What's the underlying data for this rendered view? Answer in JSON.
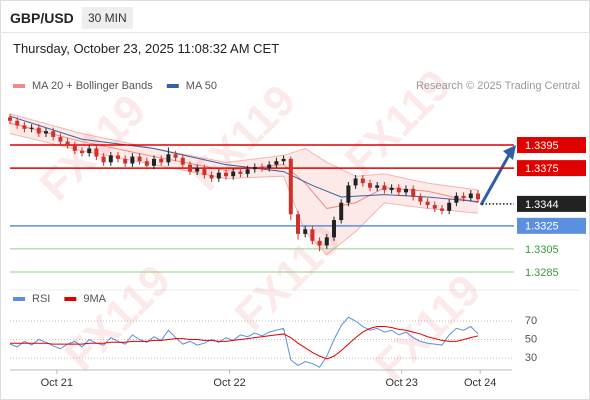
{
  "header": {
    "symbol": "GBP/USD",
    "timeframe": "30 MIN",
    "datetime": "Thursday, October 23, 2025 11:08:32 AM CET"
  },
  "watermark": "FX119",
  "chart_data": [
    {
      "type": "candlestick",
      "source": "Research © 2025 Trading Central",
      "up_color": "#222222",
      "down_color": "#d0302a",
      "xlim": [
        0,
        70
      ],
      "xticks": [
        {
          "value": 6.5,
          "label": "Oct 21"
        },
        {
          "value": 30.5,
          "label": "Oct 22"
        },
        {
          "value": 54.4,
          "label": "Oct 23"
        },
        {
          "value": 65.3,
          "label": "Oct 24"
        }
      ],
      "ylim": [
        1.3274,
        1.3425
      ],
      "open": [
        1.3419,
        1.3416,
        1.3412,
        1.3409,
        1.341,
        1.3405,
        1.3407,
        1.3402,
        1.3398,
        1.3395,
        1.339,
        1.3388,
        1.3392,
        1.3385,
        1.338,
        1.3386,
        1.3383,
        1.3379,
        1.3385,
        1.3381,
        1.3377,
        1.3383,
        1.338,
        1.3387,
        1.3384,
        1.3378,
        1.3372,
        1.3375,
        1.3369,
        1.3366,
        1.3371,
        1.3368,
        1.3372,
        1.337,
        1.3374,
        1.3376,
        1.3375,
        1.3378,
        1.3381,
        1.3383,
        1.3335,
        1.3318,
        1.3322,
        1.3312,
        1.3308,
        1.3315,
        1.333,
        1.3345,
        1.336,
        1.3366,
        1.3362,
        1.3358,
        1.336,
        1.3356,
        1.3358,
        1.3354,
        1.3357,
        1.335,
        1.3346,
        1.3343,
        1.334,
        1.3338,
        1.3345,
        1.3351,
        1.3349,
        1.3353
      ],
      "high": [
        1.3422,
        1.3419,
        1.3415,
        1.3413,
        1.3413,
        1.341,
        1.341,
        1.3405,
        1.3401,
        1.3398,
        1.3393,
        1.3395,
        1.3395,
        1.3388,
        1.3389,
        1.3389,
        1.3386,
        1.3388,
        1.3388,
        1.3384,
        1.3386,
        1.3386,
        1.3393,
        1.339,
        1.3387,
        1.3381,
        1.3378,
        1.3378,
        1.3372,
        1.3374,
        1.3374,
        1.3375,
        1.3375,
        1.3377,
        1.3379,
        1.3379,
        1.3381,
        1.3384,
        1.3386,
        1.3385,
        1.3338,
        1.3325,
        1.3325,
        1.3315,
        1.3318,
        1.3333,
        1.3348,
        1.3363,
        1.3369,
        1.3369,
        1.3365,
        1.3363,
        1.3363,
        1.3361,
        1.3361,
        1.336,
        1.336,
        1.3353,
        1.3349,
        1.3346,
        1.3343,
        1.3348,
        1.3354,
        1.3354,
        1.3356,
        1.3356
      ],
      "low": [
        1.3413,
        1.3409,
        1.3406,
        1.3406,
        1.3402,
        1.3402,
        1.3399,
        1.3395,
        1.3392,
        1.3387,
        1.3385,
        1.3385,
        1.3382,
        1.3377,
        1.3377,
        1.338,
        1.3376,
        1.3376,
        1.3378,
        1.3374,
        1.3374,
        1.3377,
        1.3377,
        1.3381,
        1.3375,
        1.3369,
        1.3369,
        1.3366,
        1.3363,
        1.3363,
        1.3365,
        1.3365,
        1.3367,
        1.3367,
        1.3371,
        1.3372,
        1.3372,
        1.3375,
        1.3378,
        1.333,
        1.3313,
        1.3315,
        1.3309,
        1.3303,
        1.3305,
        1.3312,
        1.3327,
        1.3342,
        1.3357,
        1.3359,
        1.3355,
        1.3355,
        1.3353,
        1.3353,
        1.3351,
        1.3351,
        1.3347,
        1.3343,
        1.334,
        1.3337,
        1.3335,
        1.3335,
        1.3342,
        1.3346,
        1.3346,
        1.3345
      ],
      "close": [
        1.3416,
        1.3412,
        1.3409,
        1.341,
        1.3405,
        1.3407,
        1.3402,
        1.3398,
        1.3395,
        1.339,
        1.3388,
        1.3392,
        1.3385,
        1.338,
        1.3386,
        1.3383,
        1.3379,
        1.3385,
        1.3381,
        1.3377,
        1.3383,
        1.338,
        1.3387,
        1.3384,
        1.3378,
        1.3372,
        1.3375,
        1.3369,
        1.3366,
        1.3371,
        1.3368,
        1.3372,
        1.337,
        1.3374,
        1.3376,
        1.3375,
        1.3378,
        1.3381,
        1.3383,
        1.3335,
        1.3318,
        1.3322,
        1.3312,
        1.3308,
        1.3315,
        1.333,
        1.3345,
        1.336,
        1.3366,
        1.3362,
        1.3358,
        1.336,
        1.3356,
        1.3358,
        1.3354,
        1.3357,
        1.335,
        1.3346,
        1.3343,
        1.334,
        1.3338,
        1.3345,
        1.3351,
        1.3349,
        1.3353,
        1.3348
      ],
      "series": [
        {
          "name": "MA 20 + Bollinger Bands",
          "color": "#f08a84",
          "x": [
            0,
            10,
            20,
            30,
            38,
            41,
            44,
            48,
            52,
            58,
            65
          ],
          "values": [
            1.3414,
            1.3398,
            1.3385,
            1.3373,
            1.3378,
            1.3362,
            1.334,
            1.3345,
            1.3358,
            1.3355,
            1.3345
          ],
          "upper": [
            1.3422,
            1.3405,
            1.3392,
            1.338,
            1.3386,
            1.3392,
            1.338,
            1.3368,
            1.337,
            1.3362,
            1.3356
          ],
          "lower": [
            1.3405,
            1.339,
            1.3378,
            1.3366,
            1.3368,
            1.332,
            1.33,
            1.332,
            1.3345,
            1.334,
            1.3336
          ]
        },
        {
          "name": "MA 50",
          "color": "#3b5f9e",
          "x": [
            0,
            10,
            20,
            30,
            38,
            42,
            46,
            52,
            58,
            65
          ],
          "values": [
            1.342,
            1.34,
            1.3392,
            1.3378,
            1.3372,
            1.336,
            1.335,
            1.3352,
            1.335,
            1.3346
          ]
        }
      ],
      "levels": [
        {
          "value": 1.3395,
          "color": "#e00000",
          "boxed": true,
          "dotted": false
        },
        {
          "value": 1.3375,
          "color": "#e00000",
          "boxed": true,
          "dotted": false
        },
        {
          "value": 1.3344,
          "color": "#222222",
          "boxed": true,
          "dotted": true
        },
        {
          "value": 1.3325,
          "color": "#5b8fe0",
          "boxed": true,
          "dotted": false
        },
        {
          "value": 1.3305,
          "color": "#8fd08a",
          "boxed": false,
          "dotted": false
        },
        {
          "value": 1.3285,
          "color": "#8fd08a",
          "boxed": false,
          "dotted": false
        }
      ]
    },
    {
      "type": "line",
      "ylim": [
        20,
        92
      ],
      "yticks": [
        30,
        50,
        70
      ],
      "grid": true,
      "series": [
        {
          "name": "RSI",
          "color": "#5b8fe0",
          "values": [
            45,
            42,
            48,
            44,
            50,
            47,
            43,
            40,
            45,
            48,
            42,
            50,
            46,
            44,
            52,
            48,
            45,
            55,
            50,
            47,
            53,
            49,
            60,
            52,
            45,
            48,
            44,
            46,
            50,
            47,
            52,
            49,
            55,
            53,
            57,
            54,
            58,
            60,
            62,
            28,
            22,
            26,
            24,
            20,
            32,
            50,
            65,
            74,
            70,
            64,
            60,
            62,
            58,
            60,
            55,
            58,
            52,
            48,
            46,
            45,
            44,
            55,
            62,
            60,
            64,
            56
          ]
        },
        {
          "name": "9MA",
          "color": "#e00000",
          "values": [
            46,
            46,
            46,
            46,
            46,
            46,
            45,
            45,
            45,
            45,
            45,
            46,
            46,
            46,
            47,
            47,
            47,
            48,
            48,
            48,
            49,
            49,
            50,
            51,
            51,
            50,
            50,
            49,
            49,
            48,
            48,
            49,
            50,
            51,
            52,
            53,
            54,
            55,
            56,
            52,
            46,
            41,
            36,
            32,
            29,
            32,
            38,
            45,
            52,
            58,
            62,
            64,
            64,
            63,
            61,
            60,
            58,
            56,
            53,
            51,
            49,
            48,
            48,
            50,
            52,
            54
          ]
        }
      ]
    }
  ]
}
